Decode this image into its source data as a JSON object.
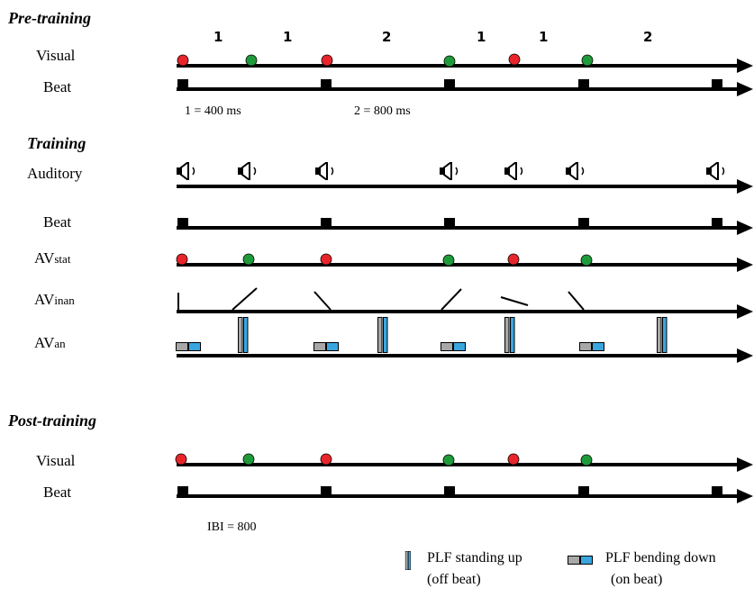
{
  "sections": {
    "pre": "Pre-training",
    "training": "Training",
    "post": "Post-training"
  },
  "labels": {
    "visual": "Visual",
    "beat": "Beat",
    "auditory": "Auditory",
    "av_prefix": "AV",
    "stat": "stat",
    "inan": "inan",
    "an": "an"
  },
  "beat_numbers": [
    "1",
    "1",
    "2",
    "1",
    "1",
    "2"
  ],
  "notes": {
    "one_equals": "1 = 400 ms",
    "two_equals": "2 = 800 ms",
    "ibi": "IBI = 800"
  },
  "legend": {
    "standing": "PLF standing up",
    "standing_sub": "(off beat)",
    "bending": "PLF bending down",
    "bending_sub": "(on beat)"
  },
  "colors": {
    "red_dot": "#e8252a",
    "green_dot": "#1f9a3a",
    "plf_grey": "#a8a8a8",
    "plf_blue": "#3aa6e0",
    "line": "#000000"
  },
  "icons": {
    "speaker": "speaker-icon",
    "arrow": "arrow-head-icon"
  }
}
